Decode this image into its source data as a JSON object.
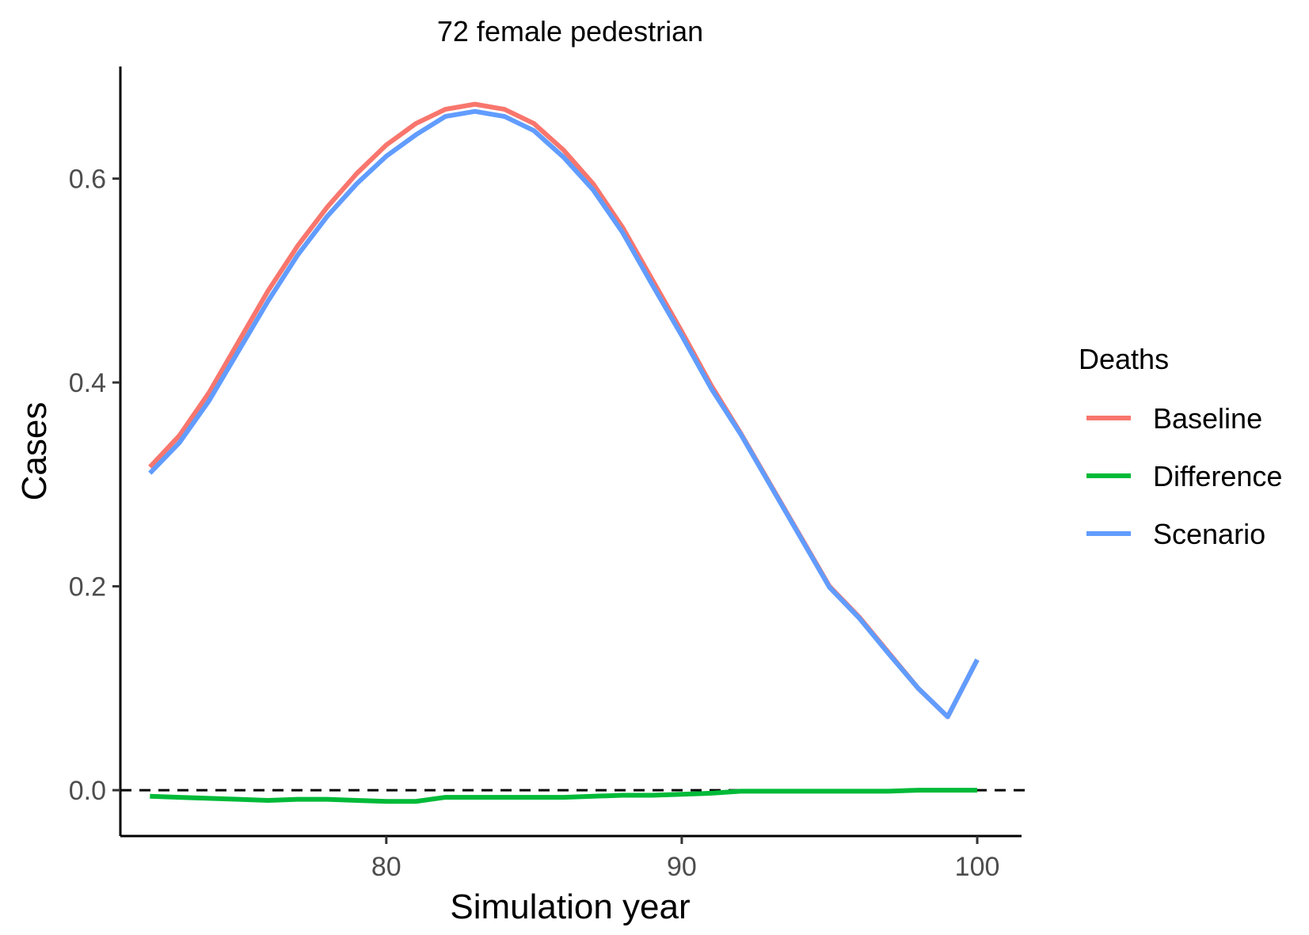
{
  "chart_data": {
    "type": "line",
    "title": "72 female pedestrian",
    "xlabel": "Simulation year",
    "ylabel": "Cases",
    "xlim": [
      71,
      101.5
    ],
    "ylim": [
      -0.045,
      0.71
    ],
    "x_ticks": [
      80,
      90,
      100
    ],
    "x_tick_labels": [
      "80",
      "90",
      "100"
    ],
    "y_ticks": [
      0.0,
      0.2,
      0.4,
      0.6
    ],
    "y_tick_labels": [
      "0.0",
      "0.2",
      "0.4",
      "0.6"
    ],
    "grid": false,
    "reference_line": {
      "y": 0,
      "style": "dashed",
      "color": "#000000"
    },
    "legend": {
      "title": "Deaths",
      "position": "right",
      "entries": [
        "Baseline",
        "Difference",
        "Scenario"
      ]
    },
    "x": [
      72,
      73,
      74,
      75,
      76,
      77,
      78,
      79,
      80,
      81,
      82,
      83,
      84,
      85,
      86,
      87,
      88,
      89,
      90,
      91,
      92,
      93,
      94,
      95,
      96,
      97,
      98,
      99,
      100
    ],
    "series": [
      {
        "name": "Baseline",
        "color": "#F8766D",
        "values": [
          0.317,
          0.348,
          0.39,
          0.44,
          0.49,
          0.534,
          0.572,
          0.605,
          0.633,
          0.654,
          0.668,
          0.673,
          0.668,
          0.654,
          0.628,
          0.595,
          0.552,
          0.501,
          0.45,
          0.397,
          0.35,
          0.3,
          0.25,
          0.2,
          0.17,
          0.135,
          0.1,
          0.072,
          0.128
        ]
      },
      {
        "name": "Difference",
        "color": "#00BA38",
        "values": [
          -0.006,
          -0.007,
          -0.008,
          -0.009,
          -0.01,
          -0.009,
          -0.009,
          -0.01,
          -0.011,
          -0.011,
          -0.007,
          -0.007,
          -0.007,
          -0.007,
          -0.007,
          -0.006,
          -0.005,
          -0.005,
          -0.004,
          -0.003,
          -0.001,
          -0.001,
          -0.001,
          -0.001,
          -0.001,
          -0.001,
          0.0,
          0.0,
          0.0
        ]
      },
      {
        "name": "Scenario",
        "color": "#619CFF",
        "values": [
          0.311,
          0.341,
          0.382,
          0.431,
          0.48,
          0.525,
          0.563,
          0.595,
          0.622,
          0.643,
          0.661,
          0.666,
          0.661,
          0.647,
          0.621,
          0.589,
          0.547,
          0.496,
          0.446,
          0.394,
          0.349,
          0.299,
          0.249,
          0.199,
          0.169,
          0.134,
          0.1,
          0.072,
          0.128
        ]
      }
    ]
  }
}
